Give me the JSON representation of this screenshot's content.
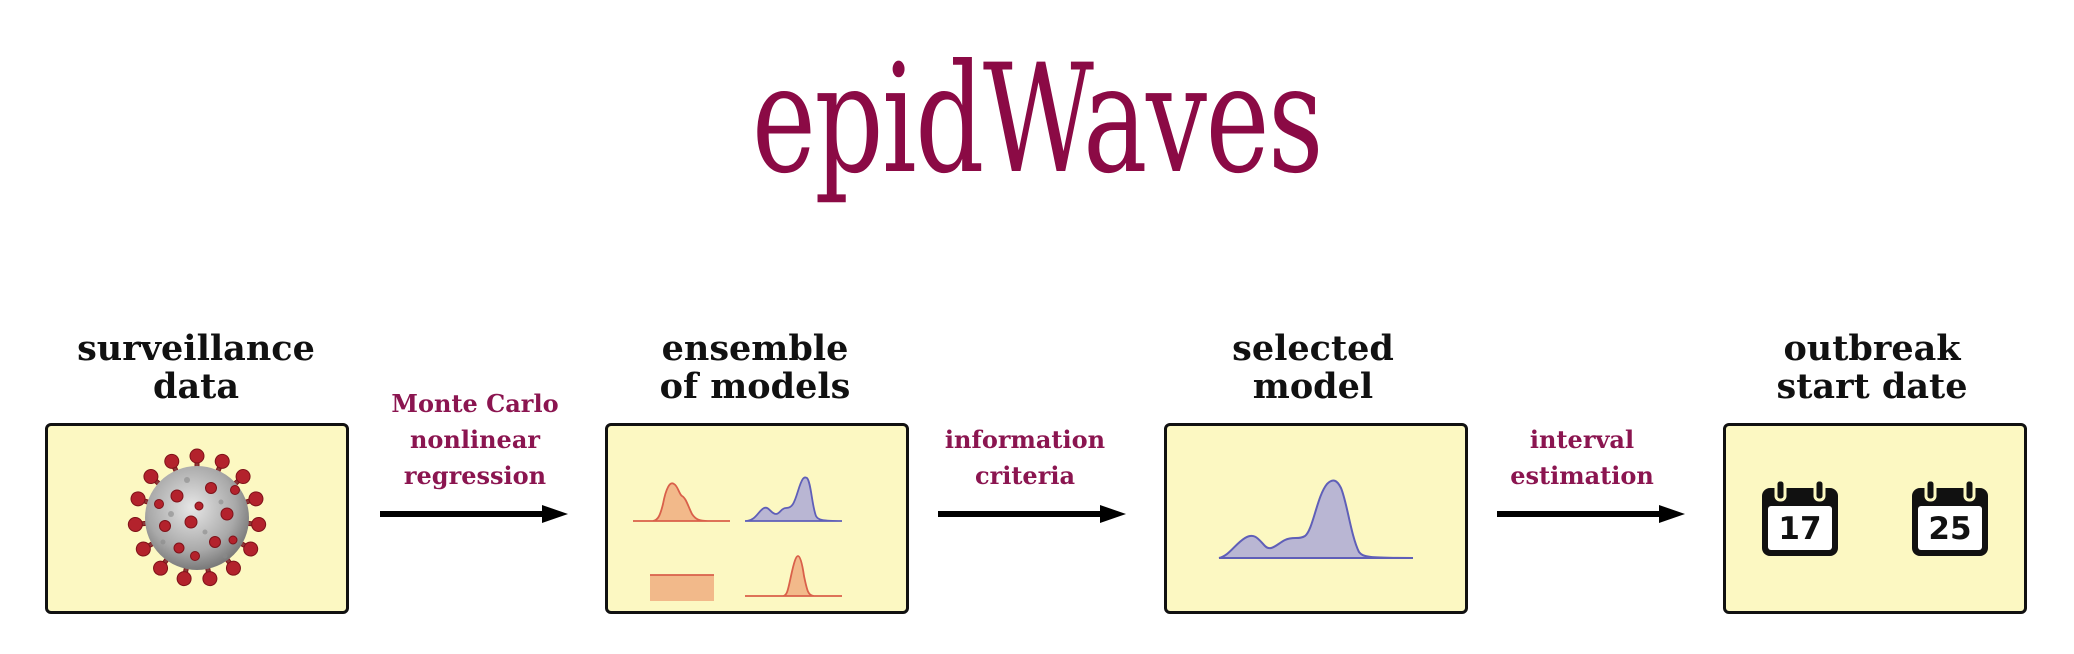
{
  "title": "epidWaves",
  "stages": [
    {
      "heading_line1": "surveillance",
      "heading_line2": "data"
    },
    {
      "heading_line1": "ensemble",
      "heading_line2": "of models"
    },
    {
      "heading_line1": "selected",
      "heading_line2": "model"
    },
    {
      "heading_line1": "outbreak",
      "heading_line2": "start date"
    }
  ],
  "edges": [
    {
      "lines": [
        "Monte Carlo",
        "nonlinear",
        "regression"
      ]
    },
    {
      "lines": [
        "information",
        "criteria"
      ]
    },
    {
      "lines": [
        "interval",
        "estimation"
      ]
    }
  ],
  "calendars": [
    {
      "day": "17",
      "icon": "calendar-icon"
    },
    {
      "day": "25",
      "icon": "calendar-icon"
    }
  ],
  "colors": {
    "title": "#8b0a45",
    "edge_label": "#8b1550",
    "panel_fill": "#fcf8c2",
    "orange_fill": "#f2b98a",
    "orange_line": "#d9604a",
    "purple_fill": "#b9b6d3",
    "purple_line": "#5f5fb8"
  }
}
